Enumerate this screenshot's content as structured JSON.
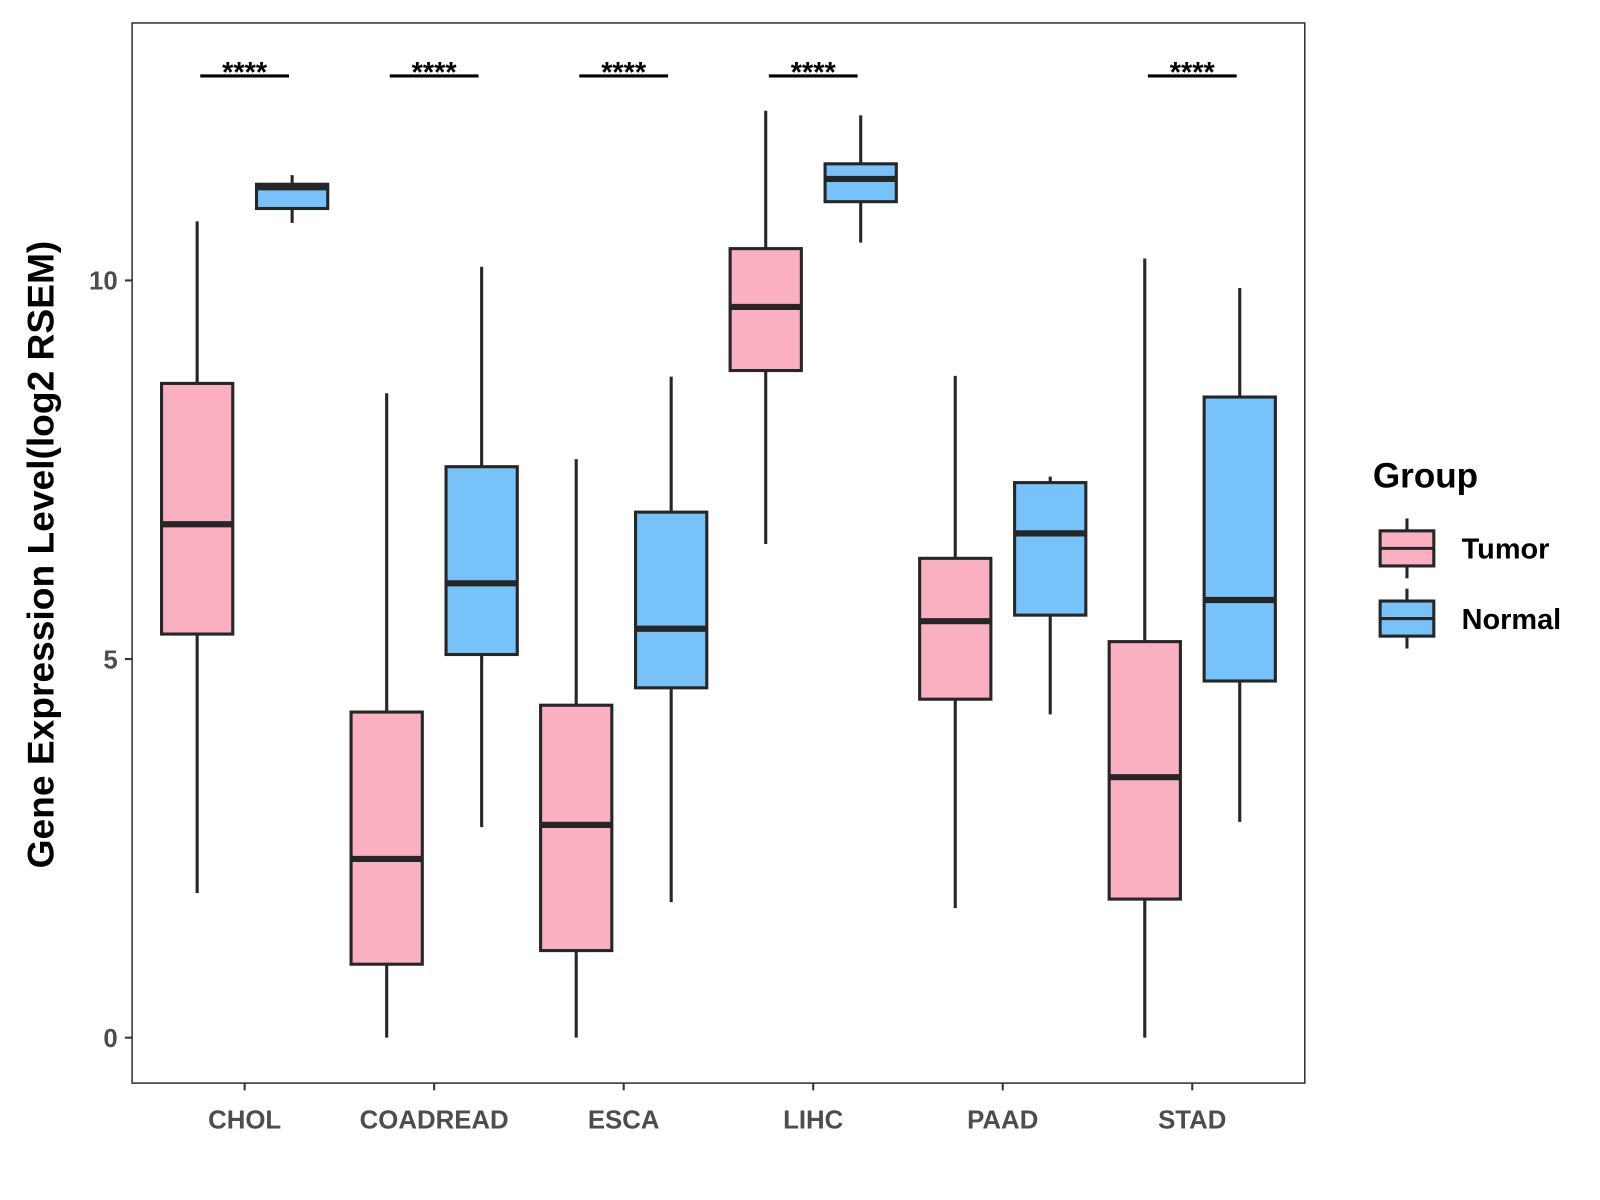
{
  "chart_data": {
    "type": "boxplot",
    "title": "",
    "xlabel": "",
    "ylabel": "Gene Expression Level(log2 RSEM)",
    "ylim": [
      -0.6,
      13.4
    ],
    "yticks": [
      0,
      5,
      10
    ],
    "grid": false,
    "categories": [
      "CHOL",
      "COADREAD",
      "ESCA",
      "LIHC",
      "PAAD",
      "STAD"
    ],
    "legend": {
      "title": "Group",
      "position": "right"
    },
    "series": [
      {
        "name": "Tumor",
        "color": "#FBB0C1",
        "boxes": [
          {
            "min": 1.91,
            "q1": 5.33,
            "median": 6.78,
            "q3": 8.64,
            "max": 10.78
          },
          {
            "min": 0.0,
            "q1": 0.97,
            "median": 2.36,
            "q3": 4.3,
            "max": 8.51
          },
          {
            "min": 0.0,
            "q1": 1.15,
            "median": 2.81,
            "q3": 4.39,
            "max": 7.64
          },
          {
            "min": 6.52,
            "q1": 8.81,
            "median": 9.65,
            "q3": 10.42,
            "max": 12.24
          },
          {
            "min": 1.71,
            "q1": 4.47,
            "median": 5.5,
            "q3": 6.33,
            "max": 8.74
          },
          {
            "min": 0.0,
            "q1": 1.83,
            "median": 3.44,
            "q3": 5.23,
            "max": 10.29
          }
        ]
      },
      {
        "name": "Normal",
        "color": "#77C2F8",
        "boxes": [
          {
            "min": 10.76,
            "q1": 10.95,
            "median": 11.23,
            "q3": 11.27,
            "max": 11.39
          },
          {
            "min": 2.78,
            "q1": 5.06,
            "median": 6.0,
            "q3": 7.54,
            "max": 10.18
          },
          {
            "min": 1.79,
            "q1": 4.62,
            "median": 5.4,
            "q3": 6.94,
            "max": 8.73
          },
          {
            "min": 10.5,
            "q1": 11.04,
            "median": 11.34,
            "q3": 11.54,
            "max": 12.18
          },
          {
            "min": 4.27,
            "q1": 5.58,
            "median": 6.66,
            "q3": 7.33,
            "max": 7.41
          },
          {
            "min": 2.85,
            "q1": 4.71,
            "median": 5.78,
            "q3": 8.46,
            "max": 9.9
          }
        ]
      }
    ],
    "significance": [
      "****",
      "****",
      "****",
      "****",
      "",
      "****"
    ],
    "significance_y": 12.7
  }
}
